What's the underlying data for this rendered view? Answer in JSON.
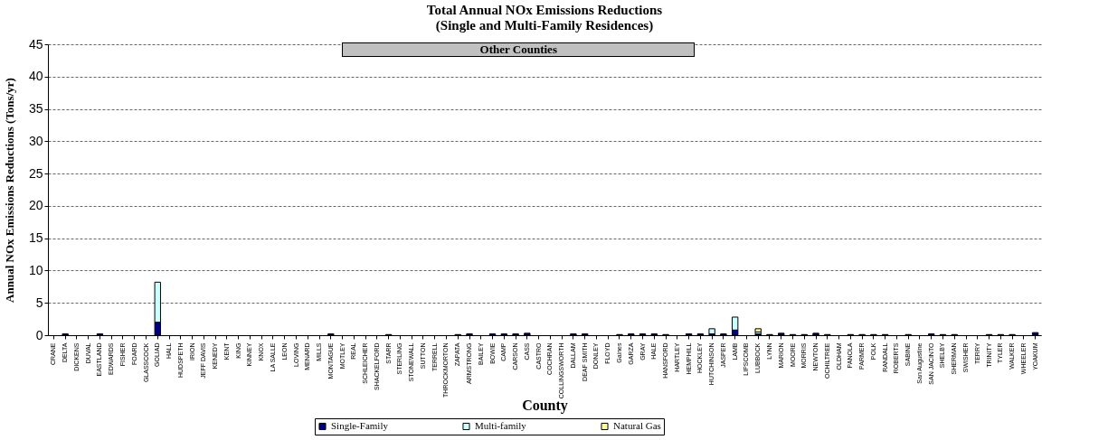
{
  "chart_data": {
    "type": "bar",
    "title": "Total Annual NOx Emissions Reductions\n(Single and Multi-Family Residences)",
    "xlabel": "County",
    "ylabel": "Annual NOx Emissions Reductions (Tons/yr)",
    "annotations": [
      "Other Counties"
    ],
    "categories": [
      "CRANE",
      "DELTA",
      "DICKENS",
      "DUVAL",
      "EASTLAND",
      "EDWARDS",
      "FISHER",
      "FOARD",
      "GLASSCOCK",
      "GOLIAD",
      "HALL",
      "HUDSPETH",
      "IRION",
      "JEFF DAVIS",
      "KENEDY",
      "KENT",
      "KING",
      "KINNEY",
      "KNOX",
      "LA SALLE",
      "LEON",
      "LOVING",
      "MENARD",
      "MILLS",
      "MONTAGUE",
      "MOTLEY",
      "REAL",
      "SCHLEICHER",
      "SHACKELFORD",
      "STARR",
      "STERLING",
      "STONEWALL",
      "SUTTON",
      "TERRELL",
      "THROCKMORTON",
      "ZAPATA",
      "ARMSTRONG",
      "BAILEY",
      "BOWIE",
      "CAMP",
      "CARSON",
      "CASS",
      "CASTRO",
      "COCHRAN",
      "COLLINGSWORTH",
      "DALLAM",
      "DEAF SMITH",
      "DONLEY",
      "FLOYD",
      "Gaines",
      "GARZA",
      "GRAY",
      "HALE",
      "HANSFORD",
      "HARTLEY",
      "HEMPHILL",
      "HOCKLEY",
      "HUTCHINSON",
      "JASPER",
      "LAMB",
      "LIPSCOMB",
      "LUBBOCK",
      "LYNN",
      "MARION",
      "MOORE",
      "MORRIS",
      "NEWTON",
      "OCHILTREE",
      "OLDHAM",
      "PANOLA",
      "PARMER",
      "POLK",
      "RANDALL",
      "ROBERTS",
      "SABINE",
      "San Augustine",
      "SAN JACINTO",
      "SHELBY",
      "SHERMAN",
      "SWISHER",
      "TERRY",
      "TRINITY",
      "TYLER",
      "WALKER",
      "WHEELER",
      "YOAKUM"
    ],
    "series": [
      {
        "name": "Single-Family",
        "color": "#000080",
        "values": [
          0,
          0.2,
          0,
          0,
          0.2,
          0,
          0,
          0,
          0,
          2.0,
          0,
          0,
          0,
          0,
          0,
          0,
          0,
          0,
          0,
          0,
          0,
          0,
          0,
          0,
          0.2,
          0,
          0,
          0,
          0,
          0.1,
          0,
          0,
          0,
          0,
          0,
          0.1,
          0.2,
          0,
          0.2,
          0.2,
          0.2,
          0.3,
          0,
          0,
          0,
          0.2,
          0.2,
          0,
          0,
          0.1,
          0.2,
          0.2,
          0.2,
          0.1,
          0,
          0.2,
          0.2,
          0.2,
          0.2,
          0.8,
          0,
          0.2,
          0.1,
          0.3,
          0.1,
          0.1,
          0.3,
          0.1,
          0,
          0.1,
          0.1,
          0.1,
          0.1,
          0,
          0.1,
          0,
          0.2,
          0.1,
          0.1,
          0,
          0,
          0.1,
          0.1,
          0.1,
          0,
          0.4
        ]
      },
      {
        "name": "Multi-family",
        "color": "#ccffff",
        "values": [
          0,
          0,
          0,
          0,
          0,
          0,
          0,
          0,
          0,
          6.2,
          0,
          0,
          0,
          0,
          0,
          0,
          0,
          0,
          0,
          0,
          0,
          0,
          0,
          0,
          0,
          0,
          0,
          0,
          0,
          0,
          0,
          0,
          0,
          0,
          0,
          0,
          0,
          0,
          0,
          0,
          0,
          0,
          0,
          0,
          0,
          0,
          0,
          0,
          0,
          0,
          0,
          0,
          0,
          0,
          0,
          0,
          0,
          0.8,
          0,
          2.0,
          0,
          0.3,
          0,
          0,
          0,
          0,
          0,
          0,
          0,
          0,
          0,
          0,
          0,
          0,
          0,
          0,
          0,
          0,
          0,
          0,
          0,
          0,
          0,
          0,
          0,
          0
        ]
      },
      {
        "name": "Natural Gas",
        "color": "#ffff99",
        "values": [
          0,
          0,
          0,
          0,
          0,
          0,
          0,
          0,
          0,
          0,
          0,
          0,
          0,
          0,
          0,
          0,
          0,
          0,
          0,
          0,
          0,
          0,
          0,
          0,
          0,
          0,
          0,
          0,
          0,
          0,
          0,
          0,
          0,
          0,
          0,
          0,
          0,
          0,
          0,
          0,
          0,
          0,
          0,
          0,
          0,
          0,
          0,
          0,
          0,
          0,
          0,
          0,
          0,
          0,
          0,
          0,
          0,
          0,
          0,
          0,
          0,
          0.5,
          0,
          0,
          0,
          0,
          0,
          0,
          0,
          0,
          0,
          0,
          0,
          0,
          0,
          0,
          0,
          0,
          0,
          0,
          0,
          0,
          0,
          0,
          0,
          0
        ]
      }
    ],
    "stacked": true,
    "ylim": [
      0,
      45
    ],
    "yticks": [
      0,
      5,
      10,
      15,
      20,
      25,
      30,
      35,
      40,
      45
    ],
    "grid": "y",
    "legend": "bottom"
  }
}
